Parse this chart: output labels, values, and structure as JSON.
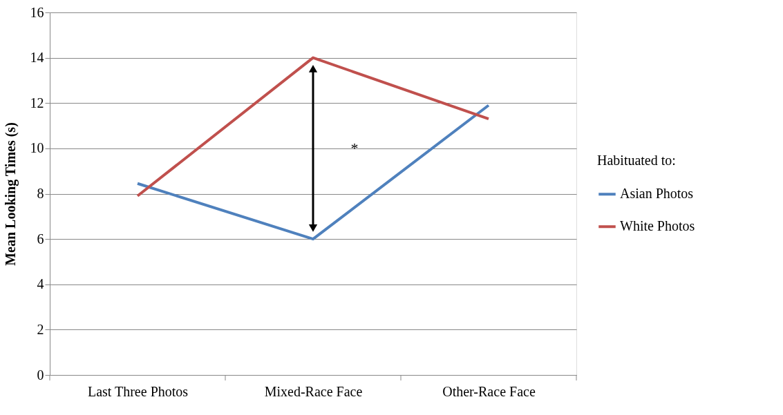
{
  "chart_data": {
    "type": "line",
    "categories": [
      "Last Three Photos",
      "Mixed-Race Face",
      "Other-Race Face"
    ],
    "series": [
      {
        "name": "Asian Photos",
        "color": "#4f81bd",
        "values": [
          8.45,
          6.0,
          11.9
        ]
      },
      {
        "name": "White Photos",
        "color": "#c0504d",
        "values": [
          7.9,
          14.0,
          11.3
        ]
      }
    ],
    "ylabel": "Mean Looking Times (s)",
    "legend_title": "Habituated to:",
    "ylim": [
      0,
      16
    ],
    "yticks": [
      0,
      2,
      4,
      6,
      8,
      10,
      12,
      14,
      16
    ],
    "grid": "y",
    "legend": "right",
    "marker": "none",
    "annotations": [
      "*"
    ]
  }
}
